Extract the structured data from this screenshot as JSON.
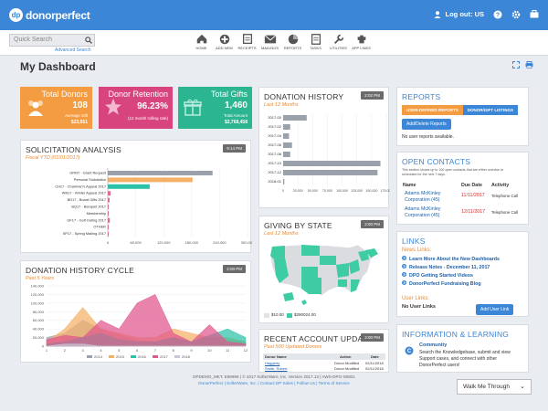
{
  "app": {
    "logo_text": "donorperfect",
    "logout_label": "Log out: US"
  },
  "search": {
    "placeholder": "Quick Search",
    "advanced_label": "Advanced Search"
  },
  "nav": [
    {
      "label": "HOME",
      "icon": "home-icon"
    },
    {
      "label": "ADD NEW",
      "icon": "add-new-icon"
    },
    {
      "label": "RECEIPTS",
      "icon": "receipts-icon"
    },
    {
      "label": "MAILINGS",
      "icon": "mailings-icon"
    },
    {
      "label": "REPORTS",
      "icon": "reports-icon"
    },
    {
      "label": "TASKS",
      "icon": "tasks-icon"
    },
    {
      "label": "UTILITIES",
      "icon": "utilities-icon"
    },
    {
      "label": "APP LINKS",
      "icon": "app-links-icon"
    }
  ],
  "page": {
    "title": "My Dashboard"
  },
  "kpis": {
    "donors": {
      "label": "Total Donors",
      "value": "108",
      "sub_label": "Average Gift",
      "sub_value": "$23,651",
      "color": "#f39c42"
    },
    "retention": {
      "label": "Donor Retention",
      "value": "96.23%",
      "sub_label": "(12 month rolling rate)",
      "color": "#d8457e"
    },
    "gifts": {
      "label": "Total Gifts",
      "value": "1,460",
      "sub_label": "Total Amount",
      "sub_value": "$2,768,458",
      "color": "#2cb591"
    }
  },
  "solicitation": {
    "title": "SOLICITATION ANALYSIS",
    "subtitle": "Fiscal YTD (01/01/2017)",
    "badge": "9:14 PM"
  },
  "donation_history": {
    "title": "DONATION HISTORY",
    "subtitle": "Last 12 Months",
    "badge": "2:02 PM"
  },
  "giving_by_state": {
    "title": "GIVING BY STATE",
    "subtitle": "Last 12 Months",
    "badge": "2:00 PM",
    "legend": [
      "$10.00",
      "$290024.00"
    ]
  },
  "cycle": {
    "title": "DONATION HISTORY CYCLE",
    "subtitle": "Past 5 Years",
    "badge": "2:00 PM"
  },
  "recent_updates": {
    "title": "RECENT ACCOUNT UPDATES",
    "subtitle": "Past 500 Updated Donors",
    "badge": "2:00 PM",
    "headers": [
      "Donor Name",
      "Action",
      "Date"
    ],
    "rows": [
      {
        "name": "Haggerty",
        "action": "Donor Modified",
        "date": "02/11/2018"
      },
      {
        "name": "Smith, Robert",
        "action": "Donor Modified",
        "date": "02/11/2018"
      }
    ]
  },
  "reports": {
    "title": "REPORTS",
    "tab1": "USER-DEFINED REPORTS",
    "tab2": "DONOR/GIFT LISTINGS",
    "button": "Add/Delete Reports",
    "empty": "No user reports available."
  },
  "open_contacts": {
    "title": "OPEN CONTACTS",
    "desc_line1": "This section shows up to 100 open contacts that are either overdue or",
    "desc_line2": "scheduled for the next 7 days.",
    "headers": [
      "Name",
      "Due Date",
      "Activity"
    ],
    "rows": [
      {
        "name1": "Adams McKinley",
        "name2": "Corporation (45)",
        "date": "11/11/2017",
        "activity": "Telephone Call"
      },
      {
        "name1": "Adams McKinley",
        "name2": "Corporation (45)",
        "date": "12/11/2017",
        "activity": "Telephone Call"
      }
    ]
  },
  "links": {
    "title": "LINKS",
    "news_label": "News Links:",
    "items": [
      "Learn More About the New Dashboards",
      "Release Notes - December 11, 2017",
      "DPO Getting Started Videos",
      "DonorPerfect Fundraising Blog"
    ],
    "user_label": "User Links:",
    "no_user": "No User Links",
    "button": "Add User Link"
  },
  "learning": {
    "title": "INFORMATION & LEARNING",
    "community_title": "Community",
    "community_l1": "Search the Knowledgebase, submit and view",
    "community_l2": "Support cases, and connect with other",
    "community_l3": "DonorPerfect users!"
  },
  "footer": {
    "line1": "DPDEMO_MKT, E99999 | © 2017 SofterWare, Inc. Version 2017.13 | AWS-DPO-WEB1",
    "line2": "DonorPerfect | SofterWare, Inc. | Contact DP Sales | Follow Us | Terms of Service"
  },
  "walk_me": "Walk Me Through",
  "chart_data": [
    {
      "type": "bar",
      "orientation": "horizontal",
      "title": "SOLICITATION ANALYSIS",
      "categories": [
        "GRNT - Grant Request",
        "Personal Solicitation",
        "CH17 - Chairman's Appeal 2017",
        "WN17 - Winter Appeal 2017",
        "BD17 - Board Gifts 2017",
        "BQ17 - Banquet 2017",
        "Membership",
        "GF17 - Golf Outing 2017",
        "OTHER",
        "SP17 - Spring Mailing 2017"
      ],
      "values": [
        225000,
        182000,
        90000,
        6000,
        4000,
        2000,
        1200,
        4500,
        900,
        1000
      ],
      "colors": [
        "#9aa1ab",
        "#f5b066",
        "#2cc2a8",
        "#e26b9a",
        "#e26b9a",
        "#e26b9a",
        "#e26b9a",
        "#e26b9a",
        "#e26b9a",
        "#e26b9a"
      ],
      "xticks": [
        "0",
        "60,000",
        "120,000",
        "180,000",
        "240,000",
        "300,000"
      ],
      "xlim": [
        0,
        300000
      ]
    },
    {
      "type": "bar",
      "orientation": "horizontal",
      "title": "DONATION HISTORY",
      "categories": [
        "2017-00",
        "2017-02",
        "2017-04",
        "2017-06",
        "2017-08",
        "2017-10",
        "2017-12",
        "2018-01"
      ],
      "values": [
        40000,
        12000,
        10000,
        15000,
        12000,
        165000,
        160000,
        2000
      ],
      "xticks": [
        "0",
        "25,000",
        "50,000",
        "75,000",
        "100,000",
        "125,000",
        "150,000",
        "175,000"
      ],
      "xlim": [
        0,
        175000
      ]
    },
    {
      "type": "area",
      "title": "DONATION HISTORY CYCLE",
      "x": [
        1,
        2,
        3,
        4,
        5,
        6,
        7,
        8,
        9,
        10,
        11,
        12
      ],
      "series": [
        {
          "name": "2014",
          "color": "#9aa1ab",
          "values": [
            20000,
            30000,
            60000,
            40000,
            25000,
            15000,
            10000,
            20000,
            10000,
            20000,
            15000,
            10000
          ]
        },
        {
          "name": "2015",
          "color": "#f5b066",
          "values": [
            10000,
            40000,
            90000,
            40000,
            30000,
            20000,
            20000,
            40000,
            30000,
            20000,
            20000,
            10000
          ]
        },
        {
          "name": "2016",
          "color": "#2cc2a8",
          "values": [
            5000,
            10000,
            20000,
            30000,
            15000,
            10000,
            10000,
            20000,
            10000,
            25000,
            40000,
            20000
          ]
        },
        {
          "name": "2017",
          "color": "#e0568d",
          "values": [
            15000,
            25000,
            20000,
            60000,
            40000,
            100000,
            120000,
            30000,
            10000,
            50000,
            10000,
            5000
          ]
        },
        {
          "name": "2018",
          "color": "#c7c7d6",
          "values": [
            0,
            5000,
            5000,
            0,
            0,
            0,
            0,
            0,
            0,
            0,
            0,
            0
          ]
        }
      ],
      "yticks": [
        "0",
        "20,000",
        "40,000",
        "60,000",
        "80,000",
        "100,000",
        "120,000",
        "140,000"
      ],
      "ylim": [
        0,
        140000
      ]
    }
  ]
}
